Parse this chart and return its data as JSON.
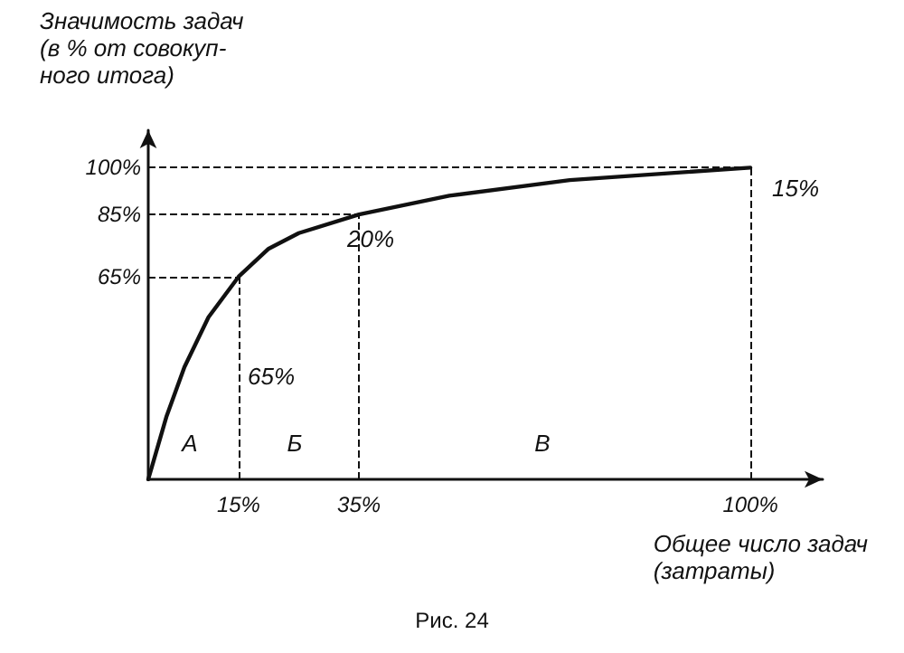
{
  "chart_data": {
    "type": "line",
    "ylabel": "Значимость задач\n(в % от совокуп-\nного итога)",
    "xlabel": "Общее число задач\n(затраты)",
    "x": [
      0,
      3,
      6,
      10,
      15,
      20,
      25,
      35,
      50,
      70,
      100
    ],
    "series": [
      {
        "color": "#111111",
        "values": [
          0,
          20,
          36,
          52,
          65,
          74,
          79,
          85,
          91,
          96,
          100
        ]
      }
    ],
    "xlim": [
      0,
      112
    ],
    "ylim": [
      0,
      112
    ],
    "xticks": [
      {
        "value": 15,
        "label": "15%"
      },
      {
        "value": 35,
        "label": "35%"
      },
      {
        "value": 100,
        "label": "100%"
      }
    ],
    "yticks": [
      {
        "value": 65,
        "label": "65%"
      },
      {
        "value": 85,
        "label": "85%"
      },
      {
        "value": 100,
        "label": "100%"
      }
    ],
    "ref_lines": [
      {
        "axis": "y",
        "value": 65,
        "line_style": "dashed"
      },
      {
        "axis": "y",
        "value": 85,
        "line_style": "dashed"
      },
      {
        "axis": "y",
        "value": 100,
        "line_style": "dashed"
      },
      {
        "axis": "x",
        "value": 15,
        "line_style": "dashed"
      },
      {
        "axis": "x",
        "value": 35,
        "line_style": "dashed"
      },
      {
        "axis": "x",
        "value": 100,
        "line_style": "dashed"
      }
    ],
    "annotations": [
      "А",
      "Б",
      "В",
      "65%",
      "20%",
      "15%",
      "Рис. 24"
    ],
    "grid": false,
    "marker": "none",
    "line_style": "solid"
  }
}
